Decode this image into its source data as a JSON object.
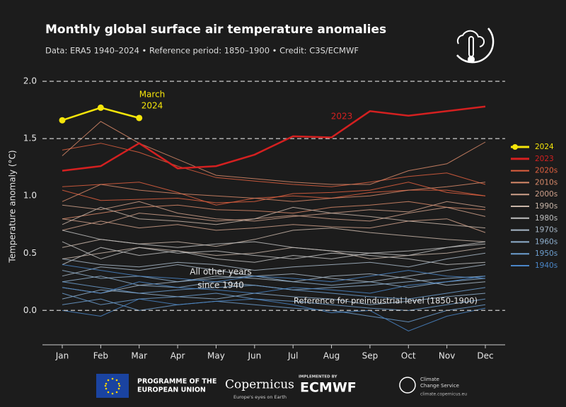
{
  "chart_data": {
    "type": "line",
    "title": "Monthly global surface air temperature anomalies",
    "subtitle": "Data: ERA5 1940–2024 • Reference period: 1850–1900 • Credit: C3S/ECMWF",
    "y_label": "Temperature anomaly (°C)",
    "categories": [
      "Jan",
      "Feb",
      "Mar",
      "Apr",
      "May",
      "Jun",
      "Jul",
      "Aug",
      "Sep",
      "Oct",
      "Nov",
      "Dec"
    ],
    "ylim": [
      -0.3,
      2.05
    ],
    "yticks": [
      {
        "value": 0,
        "label": "0.0"
      },
      0.5,
      {
        "value": 1,
        "label": "1.0"
      },
      1.5,
      {
        "value": 2,
        "label": "2.0"
      }
    ],
    "hlines": [
      0,
      1.5,
      2
    ],
    "annotations": {
      "march_2024": [
        "March",
        "2024"
      ],
      "year_2023": "2023",
      "other_years": [
        "All other years",
        "since 1940"
      ],
      "reference": "Reference for preindustrial level (1850-1900)"
    },
    "series": [
      {
        "name": "2024",
        "color": "#f5e50a",
        "markers": true,
        "values": [
          1.66,
          1.77,
          1.68,
          null,
          null,
          null,
          null,
          null,
          null,
          null,
          null,
          null
        ]
      },
      {
        "name": "2023",
        "color": "#d42020",
        "values": [
          1.22,
          1.26,
          1.46,
          1.24,
          1.26,
          1.36,
          1.52,
          1.51,
          1.74,
          1.7,
          1.74,
          1.78
        ]
      },
      {
        "name": "2020s",
        "color": "#e0603f",
        "lines": [
          [
            1.4,
            1.46,
            1.38,
            1.26,
            1.16,
            1.13,
            1.1,
            1.08,
            1.12,
            1.17,
            1.2,
            1.1
          ],
          [
            1.05,
            0.96,
            0.97,
            0.98,
            0.94,
            0.95,
            1.02,
            1.03,
            1.05,
            1.12,
            1.03,
            1.0
          ],
          [
            1.08,
            1.1,
            1.12,
            1.03,
            0.92,
            0.98,
            1.0,
            0.98,
            1.03,
            1.05,
            1.05,
            1.0
          ]
        ]
      },
      {
        "name": "2010s",
        "color": "#d98a6a",
        "lines": [
          [
            1.35,
            1.65,
            1.46,
            1.32,
            1.18,
            1.15,
            1.12,
            1.1,
            1.1,
            1.22,
            1.28,
            1.47
          ],
          [
            0.95,
            1.1,
            1.05,
            1.02,
            1.0,
            0.98,
            0.95,
            0.98,
            1.0,
            1.05,
            1.08,
            1.12
          ],
          [
            0.8,
            0.85,
            0.9,
            0.92,
            0.88,
            0.87,
            0.85,
            0.9,
            0.92,
            0.95,
            0.9,
            0.88
          ]
        ]
      },
      {
        "name": "2000s",
        "color": "#cfa08a",
        "lines": [
          [
            0.8,
            0.75,
            0.85,
            0.82,
            0.78,
            0.8,
            0.83,
            0.8,
            0.78,
            0.85,
            0.9,
            0.82
          ],
          [
            0.7,
            0.78,
            0.72,
            0.75,
            0.7,
            0.72,
            0.75,
            0.73,
            0.72,
            0.78,
            0.8,
            0.68
          ],
          [
            0.92,
            0.88,
            0.95,
            0.85,
            0.8,
            0.78,
            0.82,
            0.85,
            0.88,
            0.86,
            0.95,
            0.9
          ]
        ]
      },
      {
        "name": "1990s",
        "color": "#c8b5a8",
        "lines": [
          [
            0.55,
            0.62,
            0.58,
            0.6,
            0.56,
            0.62,
            0.7,
            0.72,
            0.68,
            0.65,
            0.62,
            0.6
          ],
          [
            0.75,
            0.9,
            0.8,
            0.78,
            0.75,
            0.8,
            0.9,
            0.85,
            0.82,
            0.78,
            0.75,
            0.72
          ],
          [
            0.45,
            0.5,
            0.55,
            0.52,
            0.48,
            0.5,
            0.55,
            0.52,
            0.45,
            0.48,
            0.5,
            0.55
          ]
        ]
      },
      {
        "name": "1980s",
        "color": "#c0c0c0",
        "lines": [
          [
            0.6,
            0.45,
            0.55,
            0.5,
            0.52,
            0.48,
            0.45,
            0.5,
            0.48,
            0.45,
            0.4,
            0.42
          ],
          [
            0.4,
            0.55,
            0.48,
            0.52,
            0.45,
            0.42,
            0.48,
            0.45,
            0.5,
            0.52,
            0.55,
            0.58
          ],
          [
            0.7,
            0.62,
            0.58,
            0.55,
            0.58,
            0.6,
            0.55,
            0.52,
            0.5,
            0.48,
            0.55,
            0.6
          ]
        ]
      },
      {
        "name": "1970s",
        "color": "#a8b8c8",
        "lines": [
          [
            0.3,
            0.38,
            0.35,
            0.4,
            0.35,
            0.3,
            0.32,
            0.28,
            0.25,
            0.3,
            0.35,
            0.4
          ],
          [
            0.2,
            0.15,
            0.22,
            0.25,
            0.3,
            0.28,
            0.25,
            0.3,
            0.32,
            0.28,
            0.22,
            0.25
          ],
          [
            0.45,
            0.4,
            0.38,
            0.42,
            0.4,
            0.35,
            0.38,
            0.4,
            0.42,
            0.38,
            0.45,
            0.5
          ]
        ]
      },
      {
        "name": "1960s",
        "color": "#8fb0cf",
        "lines": [
          [
            0.25,
            0.3,
            0.22,
            0.2,
            0.25,
            0.22,
            0.18,
            0.2,
            0.22,
            0.25,
            0.28,
            0.3
          ],
          [
            0.1,
            0.18,
            0.15,
            0.12,
            0.1,
            0.15,
            0.12,
            0.1,
            0.05,
            0.08,
            0.12,
            0.15
          ],
          [
            0.35,
            0.28,
            0.3,
            0.25,
            0.28,
            0.3,
            0.25,
            0.22,
            0.25,
            0.2,
            0.25,
            0.28
          ]
        ]
      },
      {
        "name": "1950s",
        "color": "#6d9fd0",
        "lines": [
          [
            0.15,
            0.05,
            0.1,
            0.12,
            0.15,
            0.1,
            0.08,
            0.05,
            0.02,
            0.0,
            0.05,
            0.1
          ],
          [
            0.25,
            0.2,
            0.15,
            0.18,
            0.2,
            0.22,
            0.18,
            0.15,
            0.12,
            0.1,
            0.15,
            0.2
          ],
          [
            0.05,
            0.1,
            0.0,
            0.05,
            0.08,
            0.05,
            0.02,
            0.0,
            -0.05,
            -0.1,
            0.0,
            0.05
          ]
        ]
      },
      {
        "name": "1940s",
        "color": "#4a86c8",
        "lines": [
          [
            0.4,
            0.35,
            0.3,
            0.28,
            0.25,
            0.3,
            0.28,
            0.25,
            0.3,
            0.35,
            0.3,
            0.28
          ],
          [
            0.2,
            0.15,
            0.25,
            0.2,
            0.18,
            0.15,
            0.2,
            0.18,
            0.15,
            0.22,
            0.25,
            0.3
          ],
          [
            0.0,
            -0.05,
            0.1,
            0.05,
            0.08,
            0.1,
            0.05,
            -0.02,
            0.0,
            -0.18,
            -0.05,
            0.02
          ]
        ]
      }
    ]
  },
  "footer": {
    "eu": [
      "PROGRAMME OF THE",
      "EUROPEAN UNION"
    ],
    "copernicus": "Copernicus",
    "copernicus_tagline": "Europe's eyes on Earth",
    "implemented_by": "IMPLEMENTED BY",
    "ecmwf": "ECMWF",
    "c3s": [
      "Climate",
      "Change Service"
    ],
    "c3s_url": "climate.copernicus.eu"
  }
}
